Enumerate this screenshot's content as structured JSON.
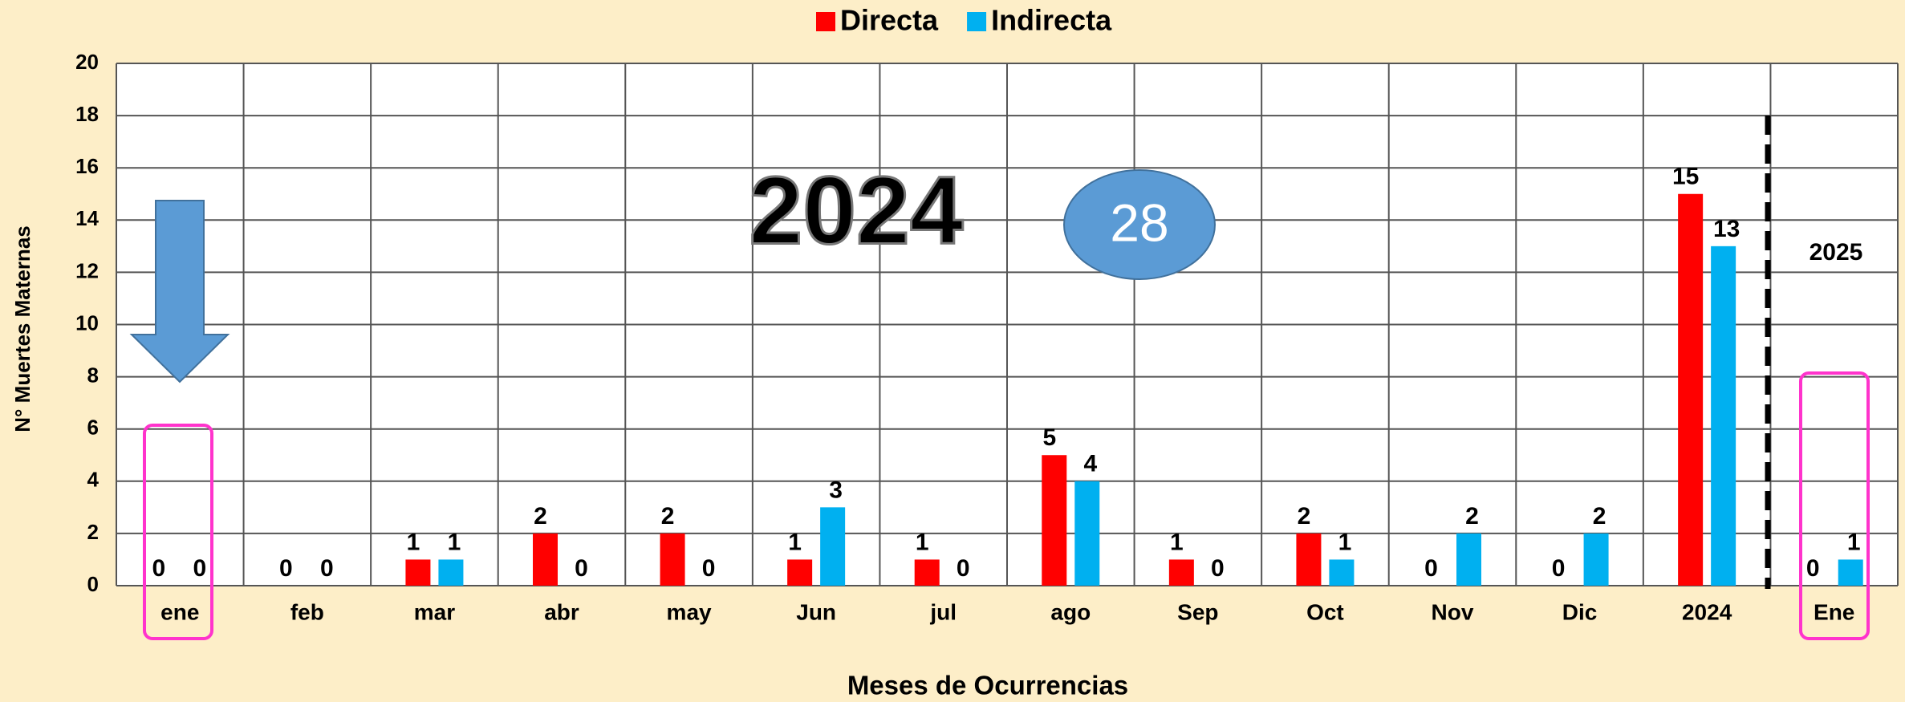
{
  "chart_data": {
    "type": "bar",
    "categories": [
      "ene",
      "feb",
      "mar",
      "abr",
      "may",
      "Jun",
      "jul",
      "ago",
      "Sep",
      "Oct",
      "Nov",
      "Dic",
      "2024",
      "Ene"
    ],
    "series": [
      {
        "name": "Directa",
        "color": "#ff0000",
        "values": [
          0,
          0,
          1,
          2,
          2,
          1,
          1,
          5,
          1,
          2,
          0,
          0,
          15,
          0
        ]
      },
      {
        "name": "Indirecta",
        "color": "#00b0f0",
        "values": [
          0,
          0,
          1,
          0,
          0,
          3,
          0,
          4,
          0,
          1,
          2,
          2,
          13,
          1
        ]
      }
    ],
    "ylim": [
      0,
      20
    ],
    "yticks": [
      0,
      2,
      4,
      6,
      8,
      10,
      12,
      14,
      16,
      18,
      20
    ],
    "y_label": "N° Muertes Maternas",
    "x_label": "Meses de Ocurrencias",
    "annotations": [
      "2024",
      "28",
      "2025"
    ],
    "grid": true,
    "legend": "top"
  }
}
